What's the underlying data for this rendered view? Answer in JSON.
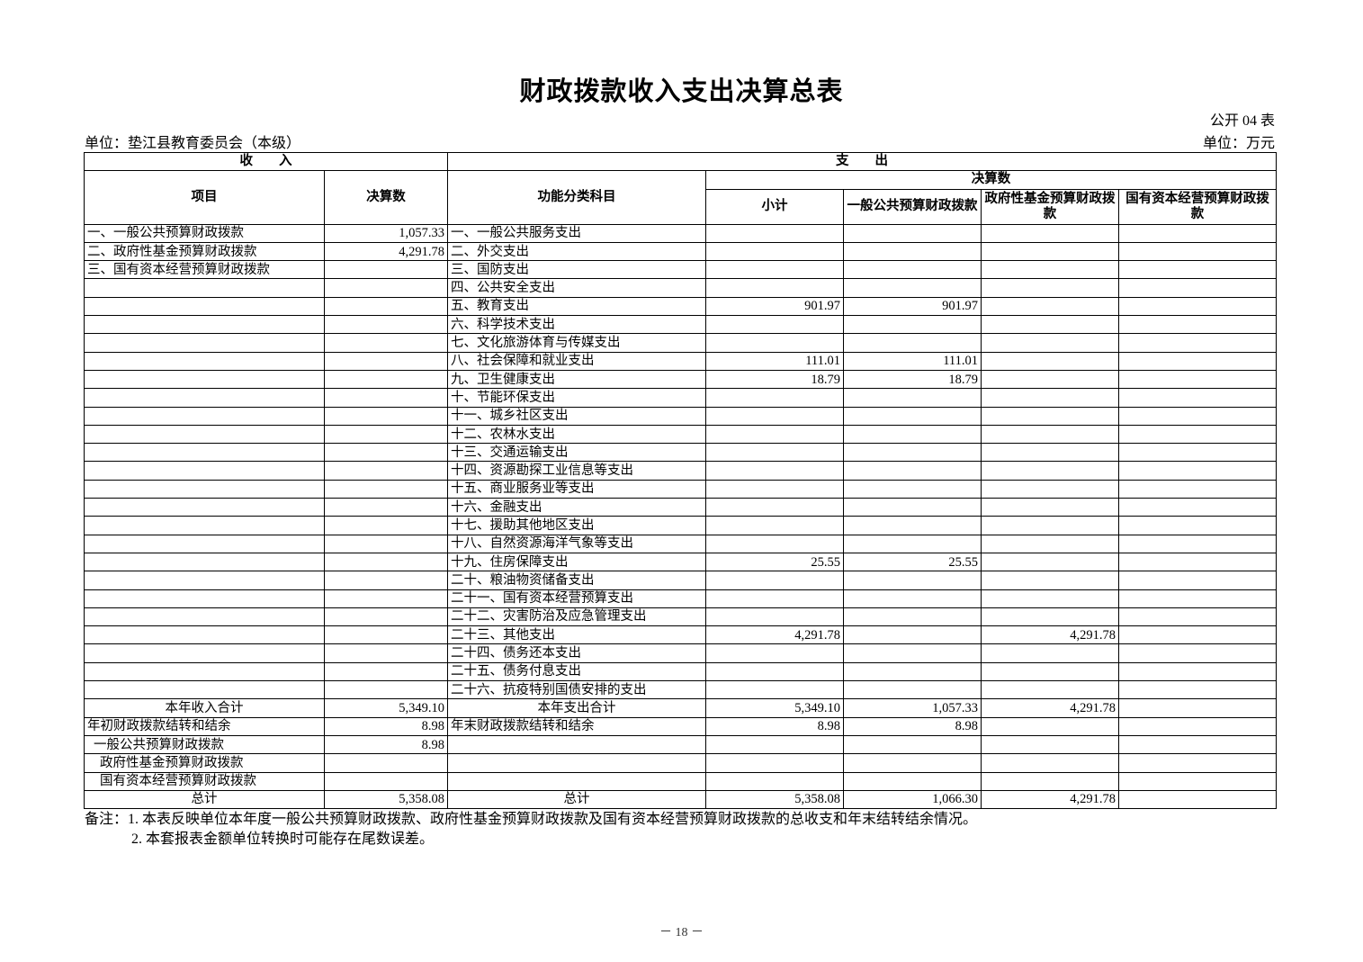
{
  "title": "财政拨款收入支出决算总表",
  "form_no": "公开 04 表",
  "unit_org": "单位：垫江县教育委员会（本级）",
  "unit_money": "单位：万元",
  "header": {
    "income": "收　　入",
    "expense": "支　　出",
    "item": "项目",
    "amount": "决算数",
    "func_class": "功能分类科目",
    "final_amount": "决算数",
    "subtotal": "小计",
    "general": "一般公共预算财政拨款",
    "fund": "政府性基金预算财政拨款",
    "state_capital": "国有资本经营预算财政拨款"
  },
  "rows": [
    {
      "kind": "item",
      "cells": [
        "一、一般公共预算财政拨款",
        "1,057.33",
        "一、一般公共服务支出",
        "",
        "",
        "",
        ""
      ]
    },
    {
      "kind": "item",
      "cells": [
        "二、政府性基金预算财政拨款",
        "4,291.78",
        "二、外交支出",
        "",
        "",
        "",
        ""
      ]
    },
    {
      "kind": "item",
      "cells": [
        "三、国有资本经营预算财政拨款",
        "",
        "三、国防支出",
        "",
        "",
        "",
        ""
      ]
    },
    {
      "kind": "item",
      "cells": [
        "",
        "",
        "四、公共安全支出",
        "",
        "",
        "",
        ""
      ]
    },
    {
      "kind": "item",
      "cells": [
        "",
        "",
        "五、教育支出",
        "901.97",
        "901.97",
        "",
        ""
      ]
    },
    {
      "kind": "item",
      "cells": [
        "",
        "",
        "六、科学技术支出",
        "",
        "",
        "",
        ""
      ]
    },
    {
      "kind": "item",
      "cells": [
        "",
        "",
        "七、文化旅游体育与传媒支出",
        "",
        "",
        "",
        ""
      ]
    },
    {
      "kind": "item",
      "cells": [
        "",
        "",
        "八、社会保障和就业支出",
        "111.01",
        "111.01",
        "",
        ""
      ]
    },
    {
      "kind": "item",
      "cells": [
        "",
        "",
        "九、卫生健康支出",
        "18.79",
        "18.79",
        "",
        ""
      ]
    },
    {
      "kind": "item",
      "cells": [
        "",
        "",
        "十、节能环保支出",
        "",
        "",
        "",
        ""
      ]
    },
    {
      "kind": "item",
      "cells": [
        "",
        "",
        "十一、城乡社区支出",
        "",
        "",
        "",
        ""
      ]
    },
    {
      "kind": "item",
      "cells": [
        "",
        "",
        "十二、农林水支出",
        "",
        "",
        "",
        ""
      ]
    },
    {
      "kind": "item",
      "cells": [
        "",
        "",
        "十三、交通运输支出",
        "",
        "",
        "",
        ""
      ]
    },
    {
      "kind": "item",
      "cells": [
        "",
        "",
        "十四、资源勘探工业信息等支出",
        "",
        "",
        "",
        ""
      ]
    },
    {
      "kind": "item",
      "cells": [
        "",
        "",
        "十五、商业服务业等支出",
        "",
        "",
        "",
        ""
      ]
    },
    {
      "kind": "item",
      "cells": [
        "",
        "",
        "十六、金融支出",
        "",
        "",
        "",
        ""
      ]
    },
    {
      "kind": "item",
      "cells": [
        "",
        "",
        "十七、援助其他地区支出",
        "",
        "",
        "",
        ""
      ]
    },
    {
      "kind": "item",
      "cells": [
        "",
        "",
        "十八、自然资源海洋气象等支出",
        "",
        "",
        "",
        ""
      ]
    },
    {
      "kind": "item",
      "cells": [
        "",
        "",
        "十九、住房保障支出",
        "25.55",
        "25.55",
        "",
        ""
      ]
    },
    {
      "kind": "item",
      "cells": [
        "",
        "",
        "二十、粮油物资储备支出",
        "",
        "",
        "",
        ""
      ]
    },
    {
      "kind": "item",
      "cells": [
        "",
        "",
        "二十一、国有资本经营预算支出",
        "",
        "",
        "",
        ""
      ]
    },
    {
      "kind": "item",
      "cells": [
        "",
        "",
        "二十二、灾害防治及应急管理支出",
        "",
        "",
        "",
        ""
      ]
    },
    {
      "kind": "item",
      "cells": [
        "",
        "",
        "二十三、其他支出",
        "4,291.78",
        "",
        "4,291.78",
        ""
      ]
    },
    {
      "kind": "item",
      "cells": [
        "",
        "",
        "二十四、债务还本支出",
        "",
        "",
        "",
        ""
      ]
    },
    {
      "kind": "item",
      "cells": [
        "",
        "",
        "二十五、债务付息支出",
        "",
        "",
        "",
        ""
      ]
    },
    {
      "kind": "item",
      "cells": [
        "",
        "",
        "二十六、抗疫特别国债安排的支出",
        "",
        "",
        "",
        ""
      ]
    },
    {
      "kind": "total",
      "cells": [
        "本年收入合计",
        "5,349.10",
        "本年支出合计",
        "5,349.10",
        "1,057.33",
        "4,291.78",
        ""
      ]
    },
    {
      "kind": "item",
      "cells": [
        "年初财政拨款结转和结余",
        "8.98",
        "年末财政拨款结转和结余",
        "8.98",
        "8.98",
        "",
        ""
      ]
    },
    {
      "kind": "sub1",
      "cells": [
        "一般公共预算财政拨款",
        "8.98",
        "",
        "",
        "",
        "",
        ""
      ]
    },
    {
      "kind": "sub2",
      "cells": [
        "政府性基金预算财政拨款",
        "",
        "",
        "",
        "",
        "",
        ""
      ]
    },
    {
      "kind": "sub2",
      "cells": [
        "国有资本经营预算财政拨款",
        "",
        "",
        "",
        "",
        "",
        ""
      ]
    },
    {
      "kind": "total",
      "cells": [
        "总计",
        "5,358.08",
        "总计",
        "5,358.08",
        "1,066.30",
        "4,291.78",
        ""
      ]
    }
  ],
  "notes": [
    "备注：1. 本表反映单位本年度一般公共预算财政拨款、政府性基金预算财政拨款及国有资本经营预算财政拨款的总收支和年末结转结余情况。",
    "2. 本套报表金额单位转换时可能存在尾数误差。"
  ],
  "page_number": "－ 18 －"
}
